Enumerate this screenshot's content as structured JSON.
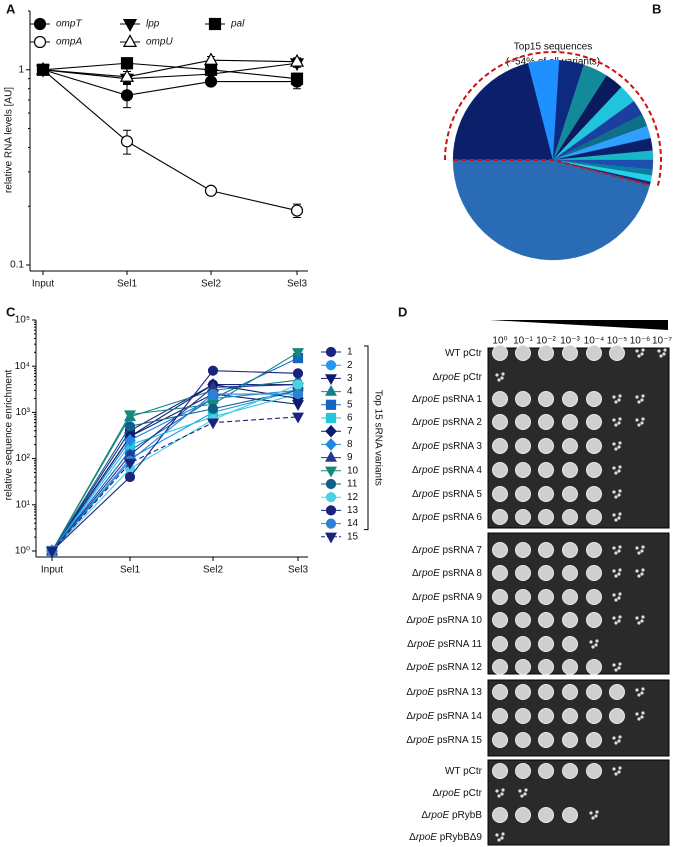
{
  "chart_data": [
    {
      "type": "line",
      "panel": "A",
      "ylabel": "relative RNA levels [AU]",
      "log": true,
      "categories": [
        "Input",
        "Sel1",
        "Sel2",
        "Sel3"
      ],
      "ylim": [
        0.1,
        2
      ],
      "yticks": [
        0.1,
        1
      ],
      "series": [
        {
          "name": "ompT",
          "color": "#000000",
          "marker": "circle",
          "filled": true,
          "values": [
            1,
            0.74,
            0.87,
            0.87
          ],
          "errors": [
            0,
            0.1,
            0.04,
            0.07
          ]
        },
        {
          "name": "ompA",
          "color": "#000000",
          "marker": "circle",
          "filled": false,
          "values": [
            1,
            0.43,
            0.24,
            0.19
          ],
          "errors": [
            0,
            0.06,
            0.01,
            0.015
          ]
        },
        {
          "name": "lpp",
          "color": "#000000",
          "marker": "triangle-down",
          "filled": true,
          "values": [
            1,
            0.9,
            0.95,
            1.08
          ],
          "errors": [
            0,
            0.05,
            0.04,
            0.05
          ]
        },
        {
          "name": "ompU",
          "color": "#000000",
          "marker": "triangle-up",
          "filled": false,
          "values": [
            1,
            0.92,
            1.12,
            1.1
          ],
          "errors": [
            0,
            0.06,
            0.05,
            0.05
          ]
        },
        {
          "name": "pal",
          "color": "#000000",
          "marker": "square",
          "filled": true,
          "values": [
            1,
            1.08,
            1.0,
            0.9
          ],
          "errors": [
            0,
            0.07,
            0.05,
            0.06
          ]
        }
      ]
    },
    {
      "type": "pie",
      "panel": "B",
      "title": "Top15 sequences",
      "subtitle": "(~54% of all variants)",
      "values": [
        21,
        5,
        4,
        4,
        3,
        3,
        2.5,
        2,
        2,
        2,
        1.5,
        1.5,
        1,
        1,
        0.5
      ],
      "colors": [
        "#0b1f6b",
        "#1e90ff",
        "#0d2a80",
        "#138a9a",
        "#0a1a5c",
        "#20c5dd",
        "#1a3f9e",
        "#0e6f8a",
        "#30a0ff",
        "#0b1f6b",
        "#16b8c8",
        "#1b4fb0",
        "#0a7fa0",
        "#26d0e6",
        "#0d2a80"
      ],
      "rest": 46,
      "rest_color": "#2a6bb5",
      "highlight_color": "#cc1111"
    },
    {
      "type": "line",
      "panel": "C",
      "ylabel": "relative sequence enrichment",
      "log": true,
      "legend_title": "Top 15 sRNA variants",
      "categories": [
        "Input",
        "Sel1",
        "Sel2",
        "Sel3"
      ],
      "ylim": [
        1,
        100000
      ],
      "yticks": [
        {
          "value": 1,
          "label": "10⁰"
        },
        {
          "value": 10,
          "label": "10¹"
        },
        {
          "value": 100,
          "label": "10²"
        },
        {
          "value": 1000,
          "label": "10³"
        },
        {
          "value": 10000,
          "label": "10⁴"
        },
        {
          "value": 100000,
          "label": "10⁵"
        }
      ],
      "series": [
        {
          "name": "1",
          "color": "#1a237e",
          "marker": "circle",
          "filled": true,
          "values": [
            1,
            400,
            4000,
            4000
          ]
        },
        {
          "name": "2",
          "color": "#2196f3",
          "marker": "circle",
          "filled": true,
          "values": [
            1,
            100,
            1000,
            3000
          ]
        },
        {
          "name": "3",
          "color": "#0d1b6e",
          "marker": "triangle-down",
          "filled": true,
          "values": [
            1,
            300,
            2500,
            1500
          ]
        },
        {
          "name": "4",
          "color": "#17808f",
          "marker": "triangle-up",
          "filled": true,
          "values": [
            1,
            800,
            3000,
            5000
          ]
        },
        {
          "name": "5",
          "color": "#1565c0",
          "marker": "square",
          "filled": true,
          "values": [
            1,
            150,
            2000,
            15000
          ]
        },
        {
          "name": "6",
          "color": "#26c6da",
          "marker": "square",
          "filled": true,
          "values": [
            1,
            200,
            800,
            2500
          ]
        },
        {
          "name": "7",
          "color": "#0d1b6e",
          "marker": "diamond",
          "filled": true,
          "values": [
            1,
            300,
            4000,
            2000
          ]
        },
        {
          "name": "8",
          "color": "#1e88e5",
          "marker": "diamond",
          "filled": true,
          "values": [
            1,
            250,
            2000,
            3000
          ]
        },
        {
          "name": "9",
          "color": "#283593",
          "marker": "triangle-up",
          "filled": true,
          "values": [
            1,
            120,
            3500,
            4000
          ]
        },
        {
          "name": "10",
          "color": "#138a7a",
          "marker": "triangle-down",
          "filled": true,
          "values": [
            1,
            900,
            1500,
            20000
          ]
        },
        {
          "name": "11",
          "color": "#0e5f8a",
          "marker": "circle",
          "filled": true,
          "values": [
            1,
            500,
            1200,
            3000
          ]
        },
        {
          "name": "12",
          "color": "#4dd0e1",
          "marker": "circle",
          "filled": true,
          "values": [
            1,
            60,
            700,
            4000
          ]
        },
        {
          "name": "13",
          "color": "#1a237e",
          "marker": "circle",
          "filled": true,
          "values": [
            1,
            40,
            8000,
            7000
          ]
        },
        {
          "name": "14",
          "color": "#2f80d0",
          "marker": "circle",
          "filled": true,
          "values": [
            1,
            90,
            2500,
            2500
          ]
        },
        {
          "name": "15",
          "color": "#1a237e",
          "marker": "triangle-down",
          "filled": true,
          "dashed": true,
          "values": [
            1,
            80,
            600,
            800
          ]
        }
      ]
    }
  ],
  "spot_assay": {
    "panel": "D",
    "dilutions": [
      "10⁰",
      "10⁻¹",
      "10⁻²",
      "10⁻³",
      "10⁻⁴",
      "10⁻⁵",
      "10⁻⁶",
      "10⁻⁷"
    ],
    "plates": [
      [
        {
          "strain": "WT",
          "plasmid": "pCtr"
        },
        {
          "delta": "Δ",
          "gene": "rpoE",
          "plasmid": "pCtr"
        },
        {
          "delta": "Δ",
          "gene": "rpoE",
          "plasmid": "psRNA 1"
        },
        {
          "delta": "Δ",
          "gene": "rpoE",
          "plasmid": "psRNA 2"
        },
        {
          "delta": "Δ",
          "gene": "rpoE",
          "plasmid": "psRNA 3"
        },
        {
          "delta": "Δ",
          "gene": "rpoE",
          "plasmid": "psRNA 4"
        },
        {
          "delta": "Δ",
          "gene": "rpoE",
          "plasmid": "psRNA 5"
        },
        {
          "delta": "Δ",
          "gene": "rpoE",
          "plasmid": "psRNA 6"
        }
      ],
      [
        {
          "delta": "Δ",
          "gene": "rpoE",
          "plasmid": "psRNA 7"
        },
        {
          "delta": "Δ",
          "gene": "rpoE",
          "plasmid": "psRNA 8"
        },
        {
          "delta": "Δ",
          "gene": "rpoE",
          "plasmid": "psRNA 9"
        },
        {
          "delta": "Δ",
          "gene": "rpoE",
          "plasmid": "psRNA 10"
        },
        {
          "delta": "Δ",
          "gene": "rpoE",
          "plasmid": "psRNA 11"
        },
        {
          "delta": "Δ",
          "gene": "rpoE",
          "plasmid": "psRNA 12"
        }
      ],
      [
        {
          "delta": "Δ",
          "gene": "rpoE",
          "plasmid": "psRNA 13"
        },
        {
          "delta": "Δ",
          "gene": "rpoE",
          "plasmid": "psRNA 14"
        },
        {
          "delta": "Δ",
          "gene": "rpoE",
          "plasmid": "psRNA 15"
        }
      ],
      [
        {
          "strain": "WT",
          "plasmid": "pCtr"
        },
        {
          "delta": "Δ",
          "gene": "rpoE",
          "plasmid": "pCtr"
        },
        {
          "delta": "Δ",
          "gene": "rpoE",
          "plasmid": "pRybB"
        },
        {
          "delta": "Δ",
          "gene": "rpoE",
          "plasmid": "pRybBΔ9"
        }
      ]
    ]
  }
}
